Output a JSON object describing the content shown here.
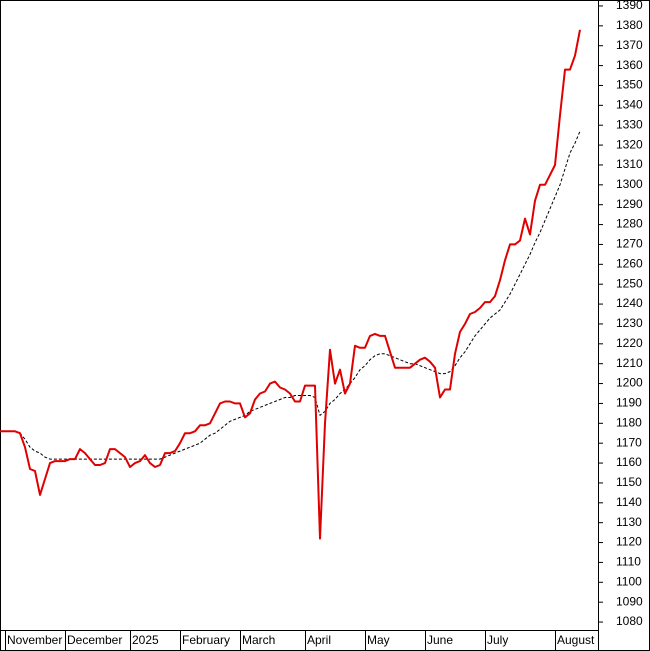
{
  "chart_data": {
    "type": "line",
    "categories": [
      null,
      "November",
      null,
      null,
      null,
      null,
      null,
      null,
      null,
      null,
      null,
      null,
      null,
      "December",
      null,
      null,
      null,
      null,
      null,
      null,
      null,
      null,
      null,
      null,
      null,
      null,
      "2025",
      null,
      null,
      null,
      null,
      null,
      null,
      null,
      null,
      null,
      "February",
      null,
      null,
      null,
      null,
      null,
      null,
      null,
      null,
      null,
      null,
      null,
      "March",
      null,
      null,
      null,
      null,
      null,
      null,
      null,
      null,
      null,
      null,
      null,
      null,
      "April",
      null,
      null,
      null,
      null,
      null,
      null,
      null,
      null,
      null,
      null,
      null,
      "May",
      null,
      null,
      null,
      null,
      null,
      null,
      null,
      null,
      null,
      null,
      null,
      "June",
      null,
      null,
      null,
      null,
      null,
      null,
      null,
      null,
      null,
      null,
      null,
      "July",
      null,
      null,
      null,
      null,
      null,
      null,
      null,
      null,
      null,
      null,
      null,
      null,
      null,
      "August",
      null,
      null,
      null,
      null,
      null
    ],
    "series": [
      {
        "color": "#e00000",
        "dashed": false,
        "values": [
          1176,
          1176,
          1176,
          1176,
          1175,
          1168,
          1157,
          1156,
          1144,
          1152,
          1160,
          1161,
          1161,
          1161,
          1162,
          1162,
          1167,
          1165,
          1162,
          1159,
          1159,
          1160,
          1167,
          1167,
          1165,
          1163,
          1158,
          1160,
          1161,
          1164,
          1160,
          1158,
          1159,
          1165,
          1165,
          1166,
          1170,
          1175,
          1175,
          1176,
          1179,
          1179,
          1180,
          1185,
          1190,
          1191,
          1191,
          1190,
          1190,
          1183,
          1185,
          1192,
          1195,
          1196,
          1200,
          1201,
          1198,
          1197,
          1195,
          1191,
          1191,
          1199,
          1199,
          1199,
          1122,
          1180,
          1217,
          1200,
          1207,
          1195,
          1200,
          1219,
          1218,
          1218,
          1224,
          1225,
          1224,
          1224,
          1216,
          1208,
          1208,
          1208,
          1208,
          1210,
          1212,
          1213,
          1211,
          1208,
          1193,
          1197,
          1197,
          1215,
          1226,
          1230,
          1235,
          1236,
          1238,
          1241,
          1241,
          1244,
          1252,
          1262,
          1270,
          1270,
          1272,
          1283,
          1275,
          1292,
          1300,
          1300,
          1305,
          1310,
          1335,
          1358,
          1358,
          1365,
          1378
        ]
      },
      {
        "color": "#000000",
        "dashed": true,
        "values": [
          1176,
          1176,
          1176,
          1176,
          1175,
          1172,
          1168,
          1166,
          1165,
          1163,
          1162,
          1162,
          1162,
          1162,
          1162,
          1162,
          1162,
          1162,
          1162,
          1162,
          1162,
          1162,
          1162,
          1162,
          1162,
          1162,
          1162,
          1162,
          1162,
          1162,
          1162,
          1162,
          1162,
          1163,
          1164,
          1165,
          1166,
          1167,
          1168,
          1169,
          1170,
          1172,
          1174,
          1175,
          1177,
          1179,
          1181,
          1182,
          1183,
          1184,
          1186,
          1187,
          1188,
          1189,
          1190,
          1191,
          1192,
          1193,
          1193,
          1194,
          1194,
          1194,
          1194,
          1193,
          1184,
          1186,
          1190,
          1192,
          1195,
          1197,
          1200,
          1203,
          1207,
          1209,
          1212,
          1214,
          1215,
          1215,
          1214,
          1213,
          1212,
          1211,
          1210,
          1210,
          1209,
          1208,
          1207,
          1206,
          1205,
          1205,
          1206,
          1209,
          1213,
          1216,
          1220,
          1224,
          1227,
          1230,
          1233,
          1235,
          1237,
          1241,
          1245,
          1250,
          1255,
          1260,
          1265,
          1271,
          1276,
          1282,
          1288,
          1294,
          1300,
          1308,
          1316,
          1321,
          1327
        ]
      }
    ],
    "ylim": [
      1076,
      1393
    ],
    "yticks": [
      1080,
      1090,
      1100,
      1110,
      1120,
      1130,
      1140,
      1150,
      1160,
      1170,
      1180,
      1190,
      1200,
      1210,
      1220,
      1230,
      1240,
      1250,
      1260,
      1270,
      1280,
      1290,
      1300,
      1310,
      1320,
      1330,
      1340,
      1350,
      1360,
      1370,
      1380,
      1390
    ],
    "axis_side": "right"
  }
}
